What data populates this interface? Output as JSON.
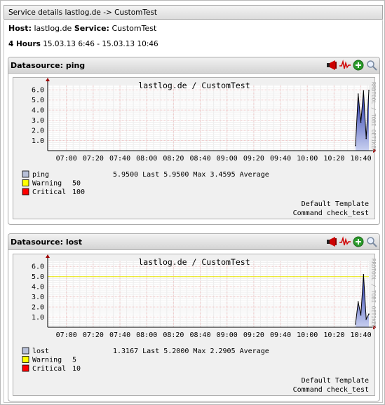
{
  "window": {
    "title": "Service details lastlog.de -> CustomTest"
  },
  "host": {
    "host_label": "Host:",
    "host": "lastlog.de",
    "service_label": "Service:",
    "service": "CustomTest"
  },
  "range": {
    "label": "4 Hours",
    "span": "15.03.13 6:46 - 15.03.13 10:46"
  },
  "panels": [
    {
      "header_label": "Datasource:",
      "datasource": "ping",
      "graph": {
        "title": "lastlog.de / CustomTest",
        "vertical_text": "RRDTOOL / TOBI OETIKER",
        "footer_template": "Default Template",
        "footer_command": "Command check_test"
      },
      "legend": [
        {
          "name": "ping",
          "color": "#b8c0d8",
          "values": "5.9500   Last   5.9500   Max   3.4595   Average"
        },
        {
          "name": "Warning",
          "color": "#ffff00",
          "values": "50"
        },
        {
          "name": "Critical",
          "color": "#ff0000",
          "values": "100"
        }
      ]
    },
    {
      "header_label": "Datasource:",
      "datasource": "lost",
      "graph": {
        "title": "lastlog.de / CustomTest",
        "vertical_text": "RRDTOOL / TOBI OETIKER",
        "footer_template": "Default Template",
        "footer_command": "Command check_test"
      },
      "legend": [
        {
          "name": "lost",
          "color": "#b8c0d8",
          "values": "1.3167   Last   5.2000   Max   2.2905   Average"
        },
        {
          "name": "Warning",
          "color": "#ffff00",
          "values": "5"
        },
        {
          "name": "Critical",
          "color": "#ff0000",
          "values": "10"
        }
      ]
    }
  ],
  "icons": [
    "alarm-icon",
    "graph-icon",
    "zoom-in-icon",
    "search-icon"
  ],
  "chart_data": [
    {
      "type": "area",
      "title": "lastlog.de / CustomTest",
      "series": [
        {
          "name": "ping",
          "x": [
            "10:36",
            "10:38",
            "10:40",
            "10:42",
            "10:44",
            "10:46"
          ],
          "values": [
            0.5,
            5.6,
            2.8,
            5.9,
            1.2,
            5.95
          ]
        }
      ],
      "categories": [
        "07:00",
        "07:20",
        "07:40",
        "08:00",
        "08:20",
        "08:40",
        "09:00",
        "09:20",
        "09:40",
        "10:00",
        "10:20",
        "10:40"
      ],
      "yticks": [
        1.0,
        2.0,
        3.0,
        4.0,
        5.0,
        6.0
      ],
      "ylim": [
        0,
        6.5
      ],
      "warning": 50,
      "critical": 100,
      "grid": true
    },
    {
      "type": "area",
      "title": "lastlog.de / CustomTest",
      "series": [
        {
          "name": "lost",
          "x": [
            "10:36",
            "10:38",
            "10:40",
            "10:42",
            "10:44",
            "10:46"
          ],
          "values": [
            0.3,
            2.5,
            1.2,
            5.2,
            0.8,
            1.3
          ]
        }
      ],
      "categories": [
        "07:00",
        "07:20",
        "07:40",
        "08:00",
        "08:20",
        "08:40",
        "09:00",
        "09:20",
        "09:40",
        "10:00",
        "10:20",
        "10:40"
      ],
      "yticks": [
        1.0,
        2.0,
        3.0,
        4.0,
        5.0,
        6.0
      ],
      "ylim": [
        0,
        6.5
      ],
      "warning": 5,
      "critical": 10,
      "grid": true
    }
  ]
}
